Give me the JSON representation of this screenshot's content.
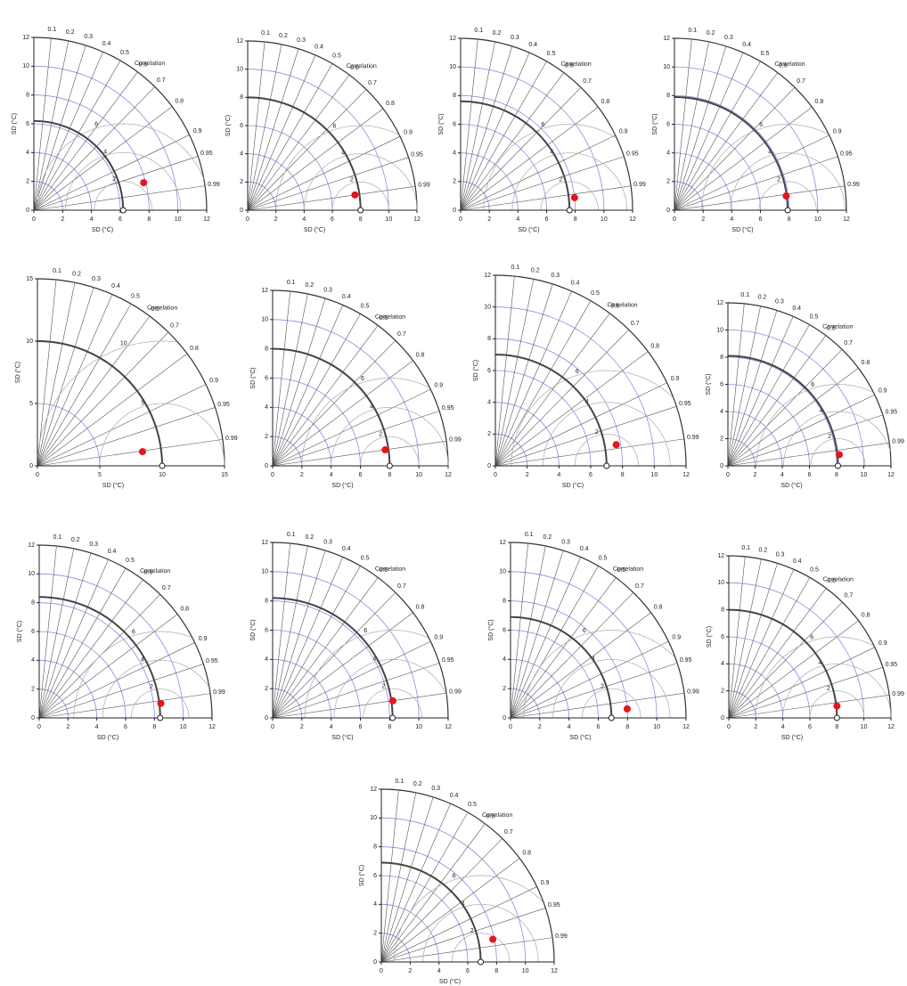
{
  "chart_data": [
    {
      "type": "taylor",
      "xlabel": "SD (°C)",
      "ylabel": "SD (°C)",
      "correlation_label": "Correlation",
      "xlim": [
        0,
        12
      ],
      "xticks": [
        0,
        2,
        4,
        6,
        8,
        10,
        12
      ],
      "ylim": [
        0,
        12
      ],
      "yticks": [
        0,
        2,
        4,
        6,
        8,
        10,
        12
      ],
      "correlation_ticks": [
        0.1,
        0.2,
        0.3,
        0.4,
        0.5,
        0.6,
        0.7,
        0.8,
        0.9,
        0.95,
        0.99
      ],
      "rms_ticks": [
        2,
        4,
        6
      ],
      "reference_sd": 6.2,
      "points": [
        {
          "sd": 7.86,
          "correlation": 0.97,
          "color": "#e8141c"
        }
      ]
    },
    {
      "type": "taylor",
      "xlabel": "SD (°C)",
      "ylabel": "SD (°C)",
      "correlation_label": "Correlation",
      "xlim": [
        0,
        12
      ],
      "xticks": [
        0,
        2,
        4,
        6,
        8,
        10,
        12
      ],
      "ylim": [
        0,
        12
      ],
      "yticks": [
        0,
        2,
        4,
        6,
        8,
        10,
        12
      ],
      "correlation_ticks": [
        0.1,
        0.2,
        0.3,
        0.4,
        0.5,
        0.6,
        0.7,
        0.8,
        0.9,
        0.95,
        0.99
      ],
      "rms_ticks": [
        2,
        4,
        6
      ],
      "reference_sd": 8.0,
      "points": [
        {
          "sd": 7.68,
          "correlation": 0.99,
          "color": "#e8141c"
        }
      ]
    },
    {
      "type": "taylor",
      "xlabel": "SD (°C)",
      "ylabel": "SD (°C)",
      "correlation_label": "Correlation",
      "xlim": [
        0,
        12
      ],
      "xticks": [
        0,
        2,
        4,
        6,
        8,
        10,
        12
      ],
      "ylim": [
        0,
        12
      ],
      "yticks": [
        0,
        2,
        4,
        6,
        8,
        10,
        12
      ],
      "correlation_ticks": [
        0.1,
        0.2,
        0.3,
        0.4,
        0.5,
        0.6,
        0.7,
        0.8,
        0.9,
        0.95,
        0.99
      ],
      "rms_ticks": [
        2,
        4,
        6
      ],
      "reference_sd": 7.6,
      "points": [
        {
          "sd": 8.0,
          "correlation": 0.994,
          "color": "#e8141c"
        }
      ]
    },
    {
      "type": "taylor",
      "xlabel": "SD (°C)",
      "ylabel": "SD (°C)",
      "correlation_label": "Correlation",
      "xlim": [
        0,
        12
      ],
      "xticks": [
        0,
        2,
        4,
        6,
        8,
        10,
        12
      ],
      "ylim": [
        0,
        12
      ],
      "yticks": [
        0,
        2,
        4,
        6,
        8,
        10,
        12
      ],
      "correlation_ticks": [
        0.1,
        0.2,
        0.3,
        0.4,
        0.5,
        0.6,
        0.7,
        0.8,
        0.9,
        0.95,
        0.99
      ],
      "rms_ticks": [
        2,
        4,
        6
      ],
      "reference_sd": 7.9,
      "points": [
        {
          "sd": 7.86,
          "correlation": 0.992,
          "color": "#e8141c"
        }
      ]
    },
    {
      "type": "taylor",
      "xlabel": "SD (°C)",
      "ylabel": "SD (°C)",
      "correlation_label": "Correlation",
      "xlim": [
        0,
        15
      ],
      "xticks": [
        0,
        5,
        10,
        15
      ],
      "ylim": [
        0,
        15
      ],
      "yticks": [
        0,
        5,
        10,
        15
      ],
      "correlation_ticks": [
        0.1,
        0.2,
        0.3,
        0.4,
        0.5,
        0.6,
        0.7,
        0.8,
        0.9,
        0.95,
        0.99
      ],
      "rms_ticks": [
        5,
        10
      ],
      "reference_sd": 10.0,
      "points": [
        {
          "sd": 8.5,
          "correlation": 0.991,
          "color": "#e8141c"
        }
      ]
    },
    {
      "type": "taylor",
      "xlabel": "SD (°C)",
      "ylabel": "SD (°C)",
      "correlation_label": "Correlation",
      "xlim": [
        0,
        12
      ],
      "xticks": [
        0,
        2,
        4,
        6,
        8,
        10,
        12
      ],
      "ylim": [
        0,
        12
      ],
      "yticks": [
        0,
        2,
        4,
        6,
        8,
        10,
        12
      ],
      "correlation_ticks": [
        0.1,
        0.2,
        0.3,
        0.4,
        0.5,
        0.6,
        0.7,
        0.8,
        0.9,
        0.95,
        0.99
      ],
      "rms_ticks": [
        2,
        4,
        6
      ],
      "reference_sd": 8.0,
      "points": [
        {
          "sd": 7.77,
          "correlation": 0.99,
          "color": "#e8141c"
        }
      ]
    },
    {
      "type": "taylor",
      "xlabel": "SD (°C)",
      "ylabel": "SD (°C)",
      "correlation_label": "Correlation",
      "xlim": [
        0,
        12
      ],
      "xticks": [
        0,
        2,
        4,
        6,
        8,
        10,
        12
      ],
      "ylim": [
        0,
        12
      ],
      "yticks": [
        0,
        2,
        4,
        6,
        8,
        10,
        12
      ],
      "correlation_ticks": [
        0.1,
        0.2,
        0.3,
        0.4,
        0.5,
        0.6,
        0.7,
        0.8,
        0.9,
        0.95,
        0.99
      ],
      "rms_ticks": [
        2,
        4,
        6
      ],
      "reference_sd": 7.0,
      "points": [
        {
          "sd": 7.72,
          "correlation": 0.985,
          "color": "#e8141c"
        }
      ]
    },
    {
      "type": "taylor",
      "xlabel": "SD (°C)",
      "ylabel": "SD (°C)",
      "correlation_label": "Correlation",
      "xlim": [
        0,
        12
      ],
      "xticks": [
        0,
        2,
        4,
        6,
        8,
        10,
        12
      ],
      "ylim": [
        0,
        12
      ],
      "yticks": [
        0,
        2,
        4,
        6,
        8,
        10,
        12
      ],
      "correlation_ticks": [
        0.1,
        0.2,
        0.3,
        0.4,
        0.5,
        0.6,
        0.7,
        0.8,
        0.9,
        0.95,
        0.99
      ],
      "rms_ticks": [
        2,
        4,
        6
      ],
      "reference_sd": 8.1,
      "points": [
        {
          "sd": 8.24,
          "correlation": 0.995,
          "color": "#e8141c"
        }
      ]
    },
    {
      "type": "taylor",
      "xlabel": "SD (°C)",
      "ylabel": "SD (°C)",
      "correlation_label": "Correlation",
      "xlim": [
        0,
        12
      ],
      "xticks": [
        0,
        2,
        4,
        6,
        8,
        10,
        12
      ],
      "ylim": [
        0,
        12
      ],
      "yticks": [
        0,
        2,
        4,
        6,
        8,
        10,
        12
      ],
      "correlation_ticks": [
        0.1,
        0.2,
        0.3,
        0.4,
        0.5,
        0.6,
        0.7,
        0.8,
        0.9,
        0.95,
        0.99
      ],
      "rms_ticks": [
        2,
        4,
        6
      ],
      "reference_sd": 8.4,
      "points": [
        {
          "sd": 8.5,
          "correlation": 0.993,
          "color": "#e8141c"
        }
      ]
    },
    {
      "type": "taylor",
      "xlabel": "SD (°C)",
      "ylabel": "SD (°C)",
      "correlation_label": "Correlation",
      "xlim": [
        0,
        12
      ],
      "xticks": [
        0,
        2,
        4,
        6,
        8,
        10,
        12
      ],
      "ylim": [
        0,
        12
      ],
      "yticks": [
        0,
        2,
        4,
        6,
        8,
        10,
        12
      ],
      "correlation_ticks": [
        0.1,
        0.2,
        0.3,
        0.4,
        0.5,
        0.6,
        0.7,
        0.8,
        0.9,
        0.95,
        0.99
      ],
      "rms_ticks": [
        2,
        4,
        6
      ],
      "reference_sd": 8.2,
      "points": [
        {
          "sd": 8.3,
          "correlation": 0.99,
          "color": "#e8141c"
        }
      ]
    },
    {
      "type": "taylor",
      "xlabel": "SD (°C)",
      "ylabel": "SD (°C)",
      "correlation_label": "Correlation",
      "xlim": [
        0,
        12
      ],
      "xticks": [
        0,
        2,
        4,
        6,
        8,
        10,
        12
      ],
      "ylim": [
        0,
        12
      ],
      "yticks": [
        0,
        2,
        4,
        6,
        8,
        10,
        12
      ],
      "correlation_ticks": [
        0.1,
        0.2,
        0.3,
        0.4,
        0.5,
        0.6,
        0.7,
        0.8,
        0.9,
        0.95,
        0.99
      ],
      "rms_ticks": [
        2,
        4,
        6
      ],
      "reference_sd": 6.9,
      "points": [
        {
          "sd": 8.0,
          "correlation": 0.997,
          "color": "#e8141c"
        }
      ]
    },
    {
      "type": "taylor",
      "xlabel": "SD (°C)",
      "ylabel": "SD (°C)",
      "correlation_label": "Correlation",
      "xlim": [
        0,
        12
      ],
      "xticks": [
        0,
        2,
        4,
        6,
        8,
        10,
        12
      ],
      "ylim": [
        0,
        12
      ],
      "yticks": [
        0,
        2,
        4,
        6,
        8,
        10,
        12
      ],
      "correlation_ticks": [
        0.1,
        0.2,
        0.3,
        0.4,
        0.5,
        0.6,
        0.7,
        0.8,
        0.9,
        0.95,
        0.99
      ],
      "rms_ticks": [
        2,
        4,
        6
      ],
      "reference_sd": 8.0,
      "points": [
        {
          "sd": 8.05,
          "correlation": 0.994,
          "color": "#e8141c"
        }
      ]
    },
    {
      "type": "taylor",
      "xlabel": "SD (°C)",
      "ylabel": "SD (°C)",
      "correlation_label": "Correlation",
      "xlim": [
        0,
        12
      ],
      "xticks": [
        0,
        2,
        4,
        6,
        8,
        10,
        12
      ],
      "ylim": [
        0,
        12
      ],
      "yticks": [
        0,
        2,
        4,
        6,
        8,
        10,
        12
      ],
      "correlation_ticks": [
        0.1,
        0.2,
        0.3,
        0.4,
        0.5,
        0.6,
        0.7,
        0.8,
        0.9,
        0.95,
        0.99
      ],
      "rms_ticks": [
        2,
        4,
        6
      ],
      "reference_sd": 6.9,
      "points": [
        {
          "sd": 7.9,
          "correlation": 0.98,
          "color": "#e8141c"
        }
      ]
    }
  ]
}
